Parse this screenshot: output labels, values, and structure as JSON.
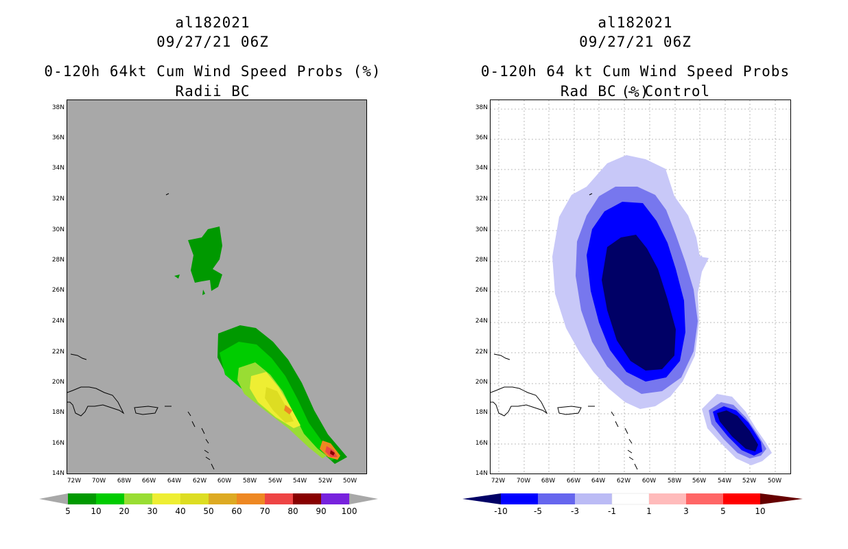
{
  "left_panel": {
    "storm_id": "al182021",
    "datetime": "09/27/21 06Z",
    "title": "0-120h 64kt Cum Wind Speed Probs (%)",
    "subtitle": "Radii BC",
    "colorbar": {
      "labels": [
        "5",
        "10",
        "20",
        "30",
        "40",
        "50",
        "60",
        "70",
        "80",
        "90",
        "100"
      ],
      "colors": [
        "#009900",
        "#00cc00",
        "#99dd33",
        "#eeee33",
        "#dddd22",
        "#ddaa22",
        "#ee8822",
        "#ee4444",
        "#880000",
        "#7722dd"
      ]
    }
  },
  "right_panel": {
    "storm_id": "al182021",
    "datetime": "09/27/21 06Z",
    "title": "0-120h 64 kt Cum Wind Speed Probs (%)",
    "subtitle": "Rad BC - Control",
    "colorbar": {
      "labels": [
        "-10",
        "-5",
        "-3",
        "-1",
        "1",
        "3",
        "5",
        "10"
      ],
      "colors": [
        "#0000ff",
        "#6666ee",
        "#bbbbf5",
        "#ffffff",
        "#ffbbbb",
        "#ff6666",
        "#ff0000"
      ],
      "end_colors": [
        "#000066",
        "#660000"
      ]
    }
  },
  "axes": {
    "lat_labels": [
      "38N",
      "36N",
      "34N",
      "32N",
      "30N",
      "28N",
      "26N",
      "24N",
      "22N",
      "20N",
      "18N",
      "16N",
      "14N"
    ],
    "lon_labels": [
      "72W",
      "70W",
      "68W",
      "66W",
      "64W",
      "62W",
      "60W",
      "58W",
      "56W",
      "54W",
      "52W",
      "50W"
    ]
  },
  "colors": {
    "background_left": "#a8a8a8",
    "background_right": "#ffffff"
  }
}
